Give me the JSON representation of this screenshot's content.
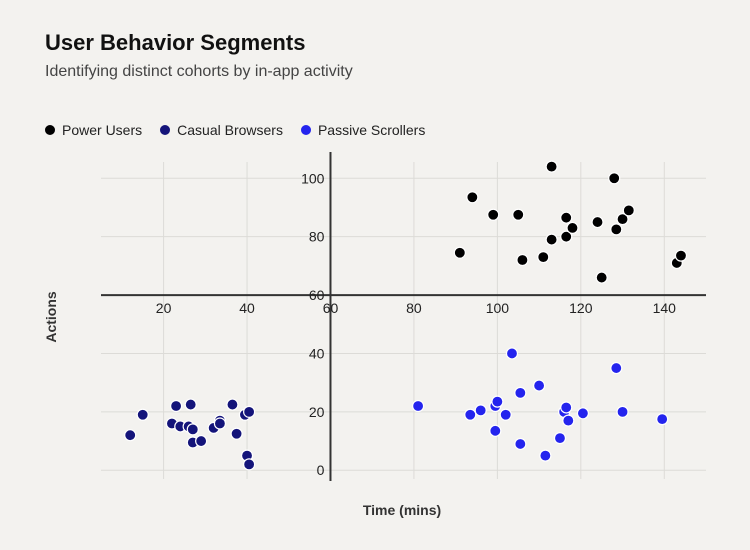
{
  "chart_data": {
    "type": "scatter",
    "title": "User Behavior Segments",
    "subtitle": "Identifying distinct cohorts by in-app activity",
    "xlabel": "Time (mins)",
    "ylabel": "Actions",
    "grid": true,
    "legend_position": "top-left",
    "xlim": [
      5,
      150
    ],
    "ylim": [
      -3,
      109
    ],
    "axis_break": {
      "top_ticks": [
        60,
        80,
        100
      ],
      "bottom_ticks": [
        0,
        20,
        40
      ]
    },
    "x_ticks": [
      20,
      40,
      60,
      80,
      100,
      120,
      140
    ],
    "series": [
      {
        "name": "Power Users",
        "color": "#000000",
        "points": [
          [
            91,
            74.5
          ],
          [
            94,
            93.5
          ],
          [
            99,
            87.5
          ],
          [
            105,
            87.5
          ],
          [
            106,
            72
          ],
          [
            111,
            73
          ],
          [
            113,
            79
          ],
          [
            113,
            104
          ],
          [
            116.5,
            80
          ],
          [
            116.5,
            86.5
          ],
          [
            118,
            83
          ],
          [
            124,
            85
          ],
          [
            125,
            66
          ],
          [
            128,
            100
          ],
          [
            128.5,
            82.5
          ],
          [
            130,
            86
          ],
          [
            131.5,
            89
          ],
          [
            143,
            71
          ],
          [
            144,
            73.5
          ]
        ]
      },
      {
        "name": "Casual Browsers",
        "color": "#14147a",
        "points": [
          [
            12,
            12
          ],
          [
            15,
            19
          ],
          [
            22,
            16
          ],
          [
            23,
            22
          ],
          [
            24,
            15
          ],
          [
            26,
            15
          ],
          [
            26.5,
            22.5
          ],
          [
            27,
            14
          ],
          [
            27,
            9.5
          ],
          [
            29,
            10
          ],
          [
            32,
            14.5
          ],
          [
            33.5,
            17
          ],
          [
            33.5,
            16
          ],
          [
            36.5,
            22.5
          ],
          [
            37.5,
            12.5
          ],
          [
            39.5,
            19
          ],
          [
            40.5,
            20
          ],
          [
            40,
            5
          ],
          [
            40.5,
            2
          ]
        ]
      },
      {
        "name": "Passive Scrollers",
        "color": "#2424ee",
        "points": [
          [
            81,
            22
          ],
          [
            93.5,
            19
          ],
          [
            96,
            20.5
          ],
          [
            99.5,
            22
          ],
          [
            100,
            23.5
          ],
          [
            99.5,
            13.5
          ],
          [
            102,
            19
          ],
          [
            103.5,
            40
          ],
          [
            105.5,
            26.5
          ],
          [
            105.5,
            9
          ],
          [
            110,
            29
          ],
          [
            111.5,
            5
          ],
          [
            115,
            11
          ],
          [
            116,
            20
          ],
          [
            116.5,
            21.5
          ],
          [
            117,
            17
          ],
          [
            120.5,
            19.5
          ],
          [
            128.5,
            35
          ],
          [
            130,
            20
          ],
          [
            139.5,
            17.5
          ]
        ]
      }
    ]
  }
}
